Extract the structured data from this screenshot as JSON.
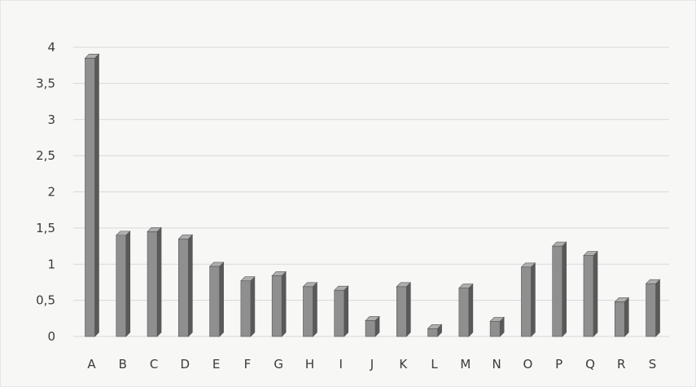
{
  "chart_data": {
    "type": "bar",
    "categories": [
      "A",
      "B",
      "C",
      "D",
      "E",
      "F",
      "G",
      "H",
      "I",
      "J",
      "K",
      "L",
      "M",
      "N",
      "O",
      "P",
      "Q",
      "R",
      "S"
    ],
    "values": [
      3.85,
      1.4,
      1.45,
      1.35,
      0.97,
      0.77,
      0.84,
      0.69,
      0.64,
      0.22,
      0.69,
      0.11,
      0.67,
      0.21,
      0.96,
      1.25,
      1.12,
      0.48,
      0.73
    ],
    "y_ticks": [
      "0",
      "0,5",
      "1",
      "1,5",
      "2",
      "2,5",
      "3",
      "3,5",
      "4"
    ],
    "ylim": [
      0,
      4
    ],
    "title": "",
    "xlabel": "",
    "ylabel": "",
    "grid": true,
    "legend": "none",
    "bar_color": "#8f8f8f",
    "grid_color": "#d9d9d9"
  }
}
